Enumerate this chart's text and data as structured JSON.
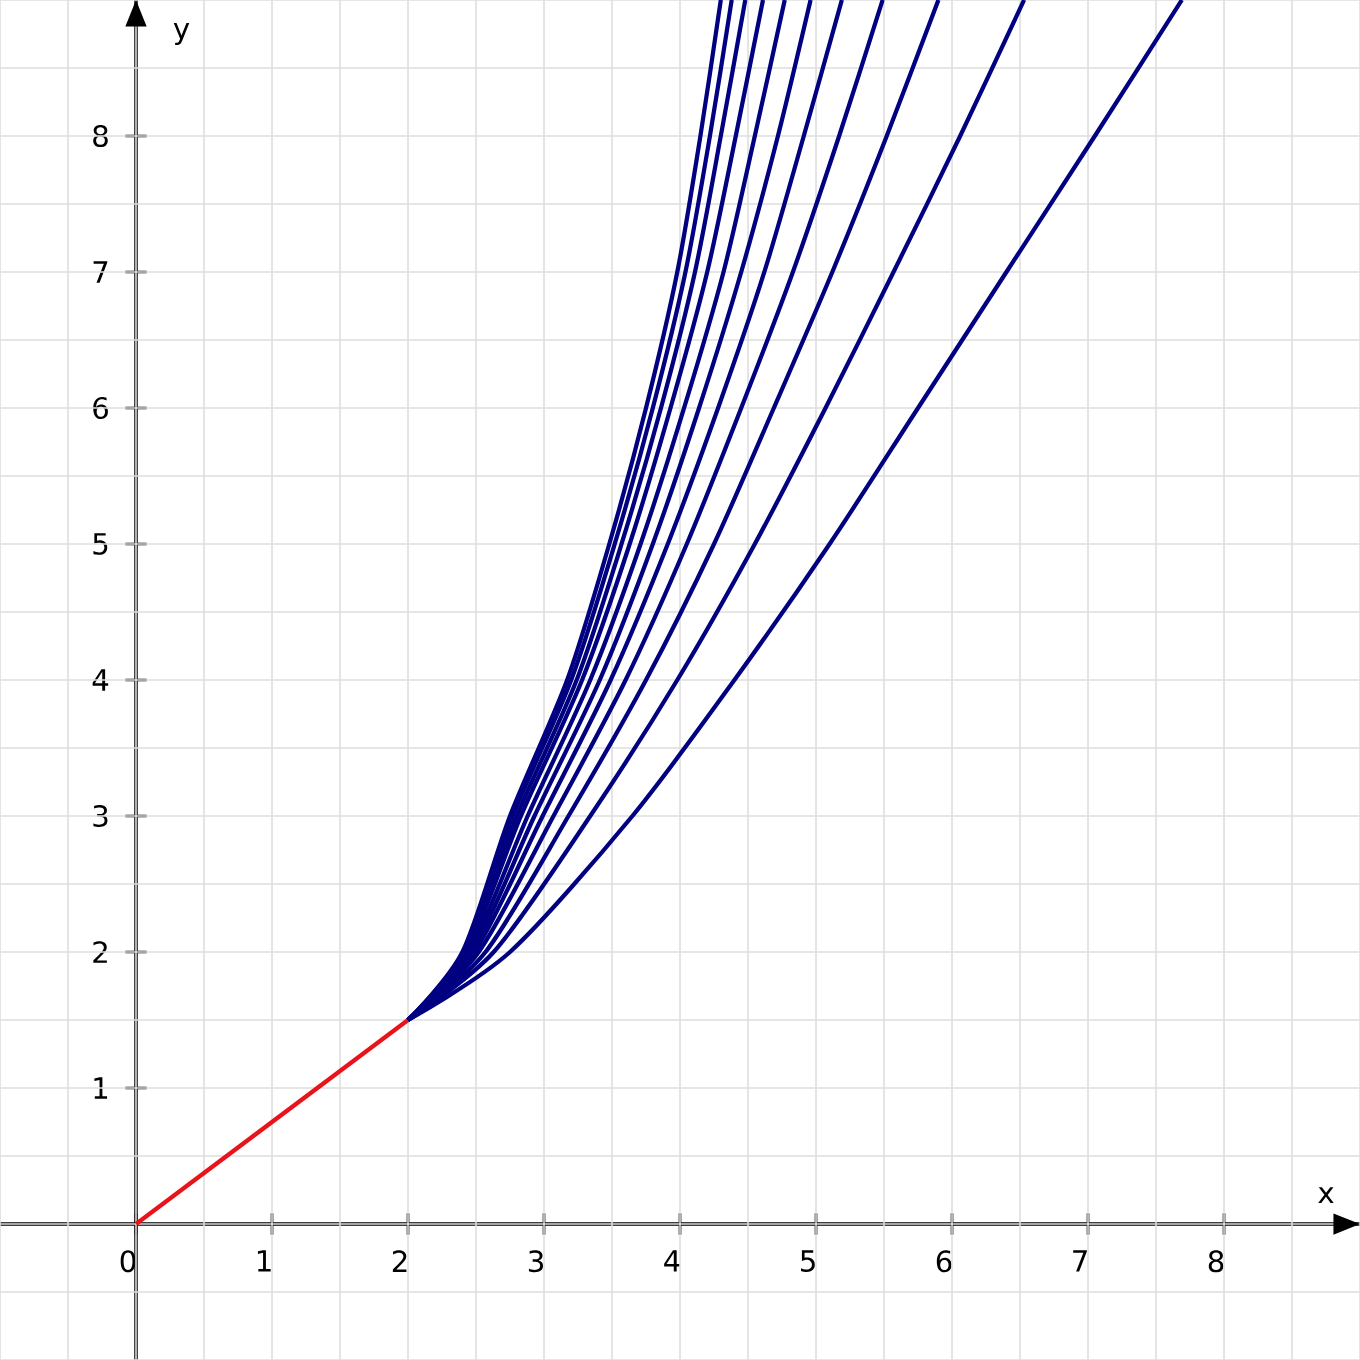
{
  "chart_data": {
    "type": "line",
    "xlabel": "x",
    "ylabel": "y",
    "xlim": [
      -1,
      9
    ],
    "ylim": [
      -1,
      9
    ],
    "xticks": [
      0,
      1,
      2,
      3,
      4,
      5,
      6,
      7,
      8
    ],
    "yticks": [
      1,
      2,
      3,
      4,
      5,
      6,
      7,
      8
    ],
    "grid": true,
    "line_style": "solid",
    "series": [
      {
        "color": "#e8141c",
        "x": [
          0,
          2
        ],
        "values": [
          0,
          1.5
        ]
      },
      {
        "color": "#000080",
        "x": [
          2,
          2.4,
          2.75,
          3.17,
          3.48,
          3.75,
          3.98,
          4.15,
          4.3
        ],
        "values": [
          1.5,
          2,
          3,
          4,
          5,
          6,
          7,
          8,
          9
        ]
      },
      {
        "color": "#000080",
        "x": [
          2,
          2.41,
          2.77,
          3.2,
          3.52,
          3.8,
          4.04,
          4.22,
          4.38
        ],
        "values": [
          1.5,
          2,
          3,
          4,
          5,
          6,
          7,
          8,
          9
        ]
      },
      {
        "color": "#000080",
        "x": [
          2,
          2.42,
          2.8,
          3.24,
          3.57,
          3.86,
          4.11,
          4.3,
          4.48
        ],
        "values": [
          1.5,
          2,
          3,
          4,
          5,
          6,
          7,
          8,
          9
        ]
      },
      {
        "color": "#000080",
        "x": [
          2,
          2.43,
          2.83,
          3.28,
          3.63,
          3.93,
          4.2,
          4.41,
          4.61
        ],
        "values": [
          1.5,
          2,
          3,
          4,
          5,
          6,
          7,
          8,
          9
        ]
      },
      {
        "color": "#000080",
        "x": [
          2,
          2.45,
          2.88,
          3.34,
          3.71,
          4.03,
          4.32,
          4.55,
          4.77
        ],
        "values": [
          1.5,
          2,
          3,
          4,
          5,
          6,
          7,
          8,
          9
        ]
      },
      {
        "color": "#000080",
        "x": [
          2,
          2.47,
          2.93,
          3.41,
          3.8,
          4.14,
          4.45,
          4.72,
          4.96
        ],
        "values": [
          1.5,
          2,
          3,
          4,
          5,
          6,
          7,
          8,
          9
        ]
      },
      {
        "color": "#000080",
        "x": [
          2,
          2.49,
          2.99,
          3.49,
          3.91,
          4.28,
          4.62,
          4.91,
          5.19
        ],
        "values": [
          1.5,
          2,
          3,
          4,
          5,
          6,
          7,
          8,
          9
        ]
      },
      {
        "color": "#000080",
        "x": [
          2,
          2.52,
          3.07,
          3.6,
          4.05,
          4.45,
          4.83,
          5.17,
          5.49
        ],
        "values": [
          1.5,
          2,
          3,
          4,
          5,
          6,
          7,
          8,
          9
        ]
      },
      {
        "color": "#000080",
        "x": [
          2,
          2.57,
          3.18,
          3.75,
          4.25,
          4.69,
          5.12,
          5.52,
          5.9
        ],
        "values": [
          1.5,
          2,
          3,
          4,
          5,
          6,
          7,
          8,
          9
        ]
      },
      {
        "color": "#000080",
        "x": [
          2,
          2.63,
          3.34,
          3.98,
          4.55,
          5.07,
          5.57,
          6.06,
          6.53
        ],
        "values": [
          1.5,
          2,
          3,
          4,
          5,
          6,
          7,
          8,
          9
        ]
      },
      {
        "color": "#000080",
        "x": [
          2,
          2.75,
          3.65,
          4.4,
          5.1,
          5.75,
          6.4,
          7.05,
          7.69
        ],
        "values": [
          1.5,
          2,
          3,
          4,
          5,
          6,
          7,
          8,
          9
        ]
      }
    ]
  }
}
